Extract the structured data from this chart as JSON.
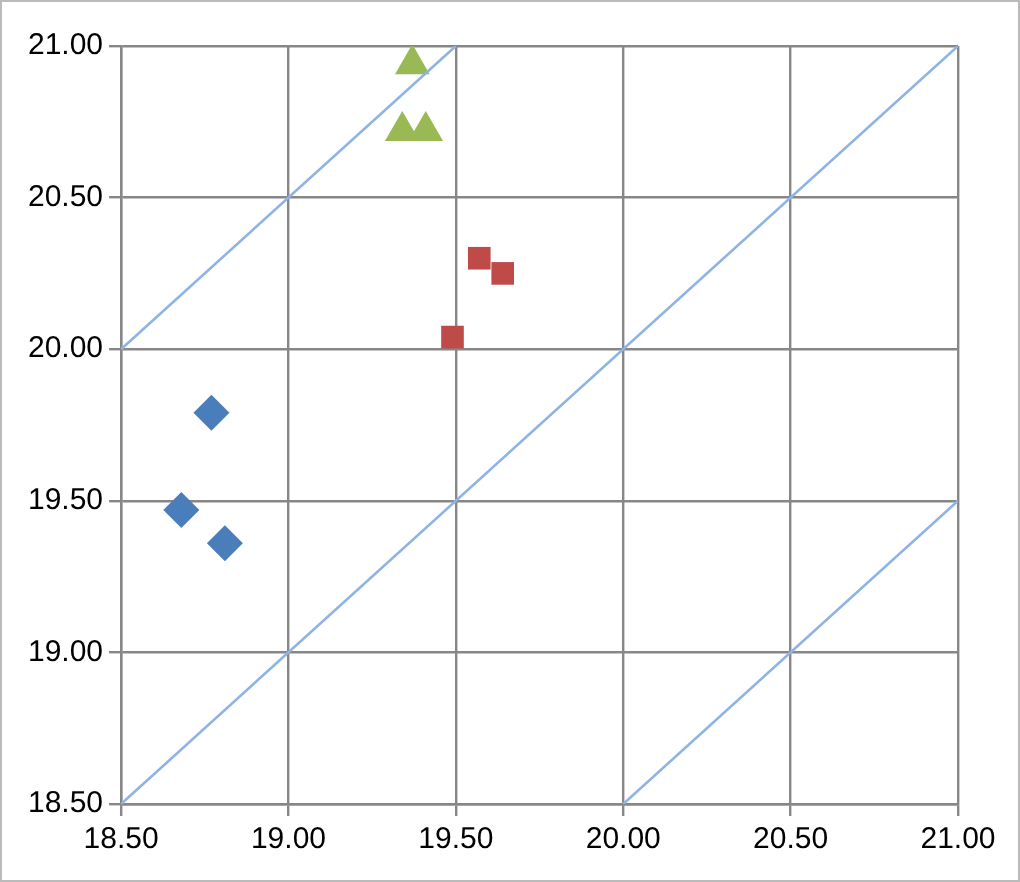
{
  "chart_data": {
    "type": "scatter",
    "xlim": [
      18.5,
      21
    ],
    "ylim": [
      18.5,
      21
    ],
    "xticks": [
      {
        "value": 18.5,
        "label": "18.50"
      },
      {
        "value": 19,
        "label": "19.00"
      },
      {
        "value": 19.5,
        "label": "19.50"
      },
      {
        "value": 20,
        "label": "20.00"
      },
      {
        "value": 20.5,
        "label": "20.50"
      },
      {
        "value": 21,
        "label": "21.00"
      }
    ],
    "yticks": [
      {
        "value": 18.5,
        "label": "18.50"
      },
      {
        "value": 19,
        "label": "19.00"
      },
      {
        "value": 19.5,
        "label": "19.50"
      },
      {
        "value": 20,
        "label": "20.00"
      },
      {
        "value": 20.5,
        "label": "20.50"
      },
      {
        "value": 21,
        "label": "21.00"
      }
    ],
    "grid": true,
    "series": [
      {
        "type": "line",
        "marker": "none",
        "color": "#8eb4e3",
        "x": [
          18.5,
          19.5
        ],
        "values": [
          20,
          21
        ]
      },
      {
        "type": "line",
        "marker": "none",
        "color": "#8eb4e3",
        "x": [
          18.5,
          21
        ],
        "values": [
          18.5,
          21
        ]
      },
      {
        "type": "line",
        "marker": "none",
        "color": "#8eb4e3",
        "x": [
          20,
          21
        ],
        "values": [
          18.5,
          19.5
        ]
      },
      {
        "marker": "diamond",
        "color": "#4a7ebb",
        "x": [
          18.77,
          18.68,
          18.81
        ],
        "values": [
          19.79,
          19.47,
          19.36
        ]
      },
      {
        "marker": "square",
        "color": "#be4b48",
        "x": [
          19.49,
          19.57,
          19.64
        ],
        "values": [
          20.04,
          20.3,
          20.25
        ]
      },
      {
        "marker": "triangle",
        "color": "#98b954",
        "x": [
          19.37,
          19.34,
          19.41
        ],
        "values": [
          20.94,
          20.72,
          20.72
        ]
      }
    ]
  }
}
